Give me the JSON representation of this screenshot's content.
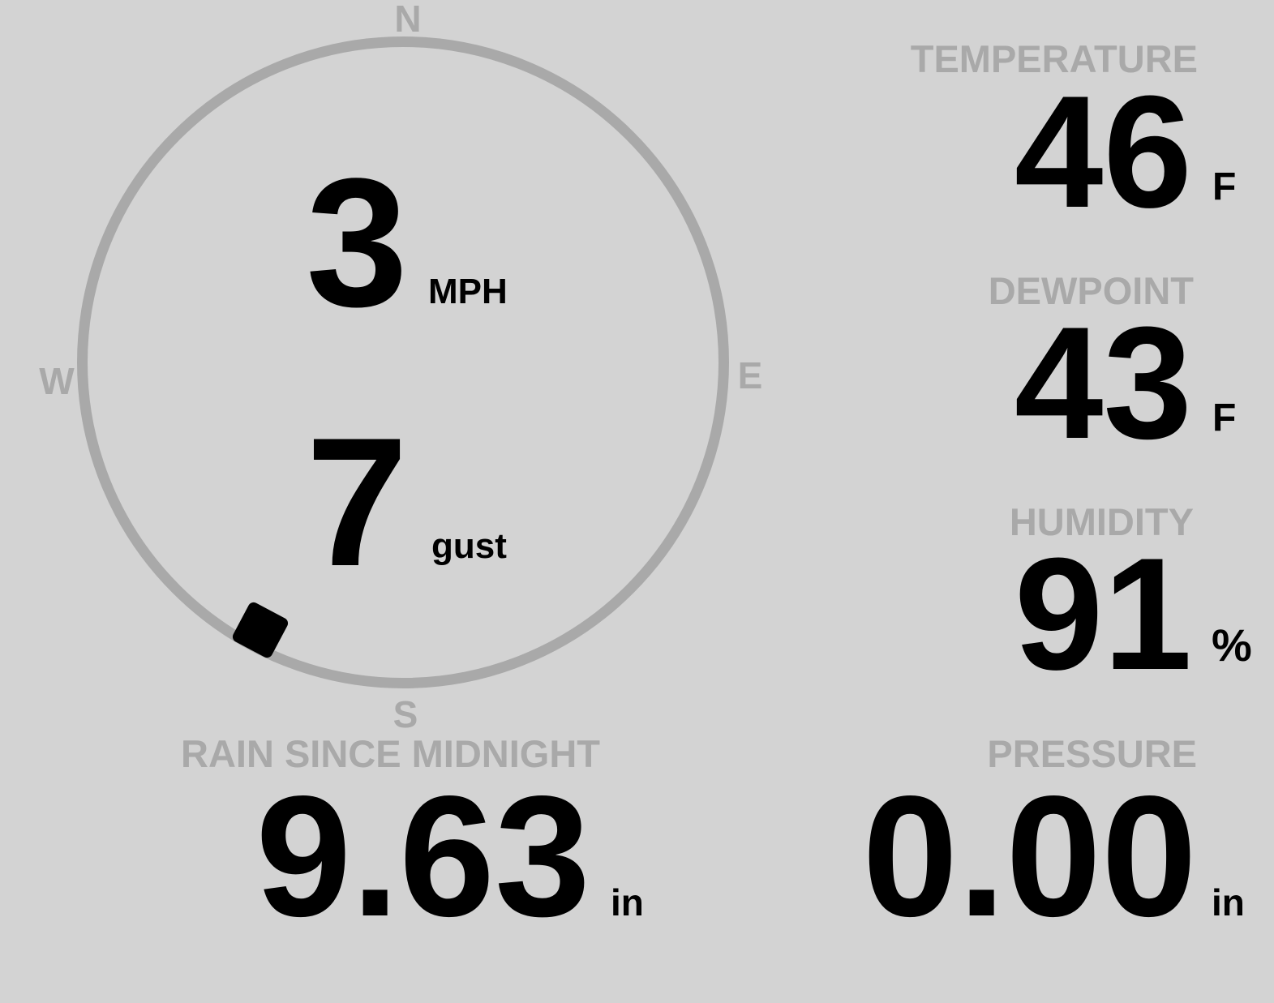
{
  "theme": {
    "background": "#d3d3d3",
    "muted": "#a9a9a9",
    "ink": "#000000"
  },
  "wind": {
    "speed": "3",
    "speed_unit": "MPH",
    "gust": "7",
    "gust_unit": "gust",
    "direction_degrees": 208,
    "compass": {
      "north": "N",
      "east": "E",
      "south": "S",
      "west": "W"
    }
  },
  "metrics": {
    "temperature": {
      "label": "TEMPERATURE",
      "value": "46",
      "unit": "F"
    },
    "dewpoint": {
      "label": "DEWPOINT",
      "value": "43",
      "unit": "F"
    },
    "humidity": {
      "label": "HUMIDITY",
      "value": "91",
      "unit": "%"
    },
    "pressure": {
      "label": "PRESSURE",
      "value": "0.00",
      "unit": "in"
    },
    "rain": {
      "label": "RAIN SINCE MIDNIGHT",
      "value": "9.63",
      "unit": "in"
    }
  }
}
